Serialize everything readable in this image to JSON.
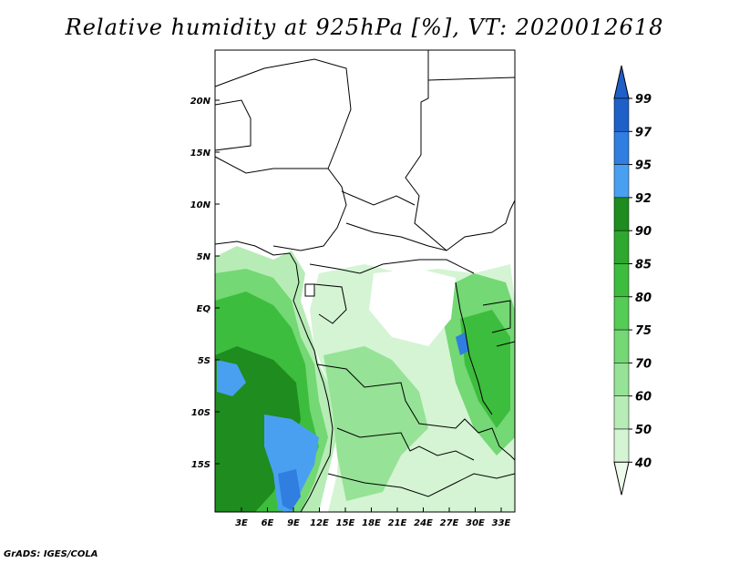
{
  "title": "Relative humidity at 925hPa [%], VT: 2020012618",
  "footer": "GrADS: IGES/COLA",
  "map": {
    "lat_ticks": [
      "20N",
      "15N",
      "10N",
      "5N",
      "EQ",
      "5S",
      "10S",
      "15S"
    ],
    "lon_ticks": [
      "3E",
      "6E",
      "9E",
      "12E",
      "15E",
      "18E",
      "21E",
      "24E",
      "27E",
      "30E",
      "33E"
    ]
  },
  "colorbar": {
    "labels": [
      "99",
      "97",
      "95",
      "92",
      "90",
      "85",
      "80",
      "75",
      "70",
      "60",
      "50",
      "40"
    ],
    "colors": [
      "#1f5fc8",
      "#2f7ee0",
      "#4aa0f0",
      "#1e8c1e",
      "#2ea82e",
      "#3dbd3d",
      "#55cc55",
      "#74d874",
      "#96e296",
      "#b7ecb7",
      "#d4f4d4",
      "#ecfbec"
    ]
  }
}
